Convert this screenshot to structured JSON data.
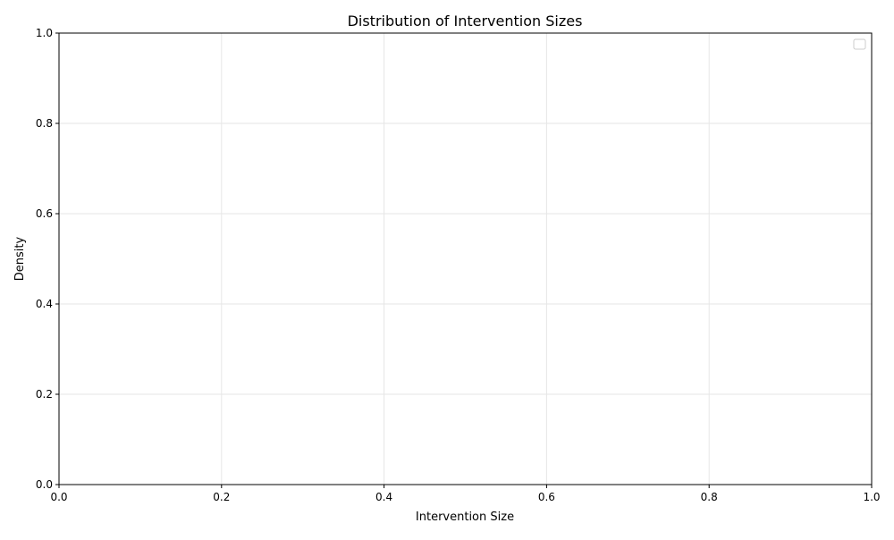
{
  "chart_data": {
    "type": "line",
    "title": "Distribution of Intervention Sizes",
    "xlabel": "Intervention Size",
    "ylabel": "Density",
    "xlim": [
      0.0,
      1.0
    ],
    "ylim": [
      0.0,
      1.0
    ],
    "x_ticks": [
      "0.0",
      "0.2",
      "0.4",
      "0.6",
      "0.8",
      "1.0"
    ],
    "y_ticks": [
      "0.0",
      "0.2",
      "0.4",
      "0.6",
      "0.8",
      "1.0"
    ],
    "series": [],
    "grid": true,
    "legend": "upper-right (empty)"
  },
  "colors": {
    "grid": "#e6e6e6",
    "axis": "#000000",
    "legend_border": "#cccccc"
  }
}
